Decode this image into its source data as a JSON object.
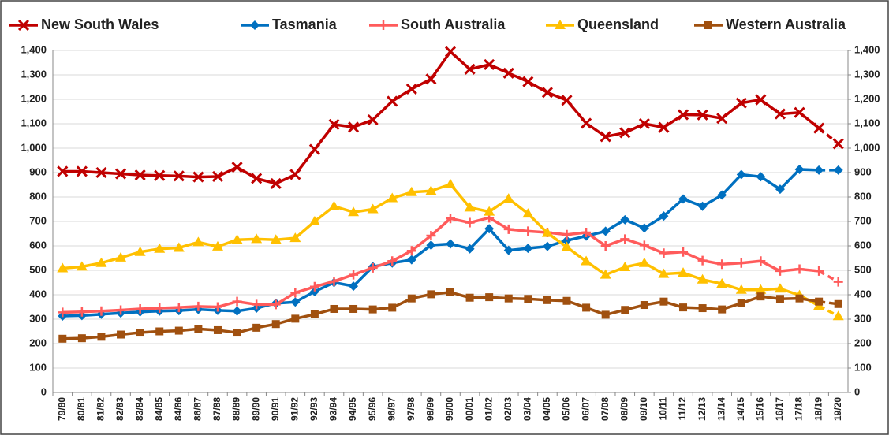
{
  "chart_data": {
    "type": "line",
    "categories": [
      "79/80",
      "80/81",
      "81/82",
      "82/83",
      "83/84",
      "84/85",
      "84/86",
      "86/87",
      "87/88",
      "88/89",
      "89/90",
      "90/91",
      "91/92",
      "92/93",
      "93/94",
      "94/95",
      "95/96",
      "96/97",
      "97/98",
      "98/99",
      "99/00",
      "00/01",
      "01/02",
      "02/03",
      "03/04",
      "04/05",
      "05/06",
      "06/07",
      "07/08",
      "08/09",
      "09/10",
      "10/11",
      "11/12",
      "12/13",
      "13/14",
      "14/15",
      "15/16",
      "16/17",
      "17/18",
      "18/19",
      "19/20"
    ],
    "series": [
      {
        "name": "New South Wales",
        "color": "#c00000",
        "marker": "x",
        "values": [
          905,
          905,
          900,
          895,
          890,
          888,
          886,
          882,
          884,
          922,
          876,
          855,
          892,
          995,
          1097,
          1086,
          1116,
          1192,
          1242,
          1283,
          1395,
          1323,
          1342,
          1307,
          1272,
          1228,
          1196,
          1102,
          1047,
          1063,
          1100,
          1085,
          1137,
          1136,
          1122,
          1185,
          1198,
          1140,
          1146,
          1082,
          1018
        ]
      },
      {
        "name": "Tasmania",
        "color": "#0070c0",
        "marker": "diamond",
        "values": [
          313,
          315,
          320,
          325,
          330,
          333,
          335,
          340,
          336,
          333,
          345,
          365,
          370,
          413,
          450,
          435,
          515,
          530,
          543,
          603,
          608,
          588,
          670,
          582,
          590,
          598,
          622,
          640,
          660,
          707,
          673,
          722,
          792,
          762,
          808,
          892,
          883,
          832,
          913,
          910,
          910
        ]
      },
      {
        "name": "South Australia",
        "color": "#ff5b5b",
        "marker": "plus",
        "values": [
          328,
          330,
          333,
          337,
          342,
          345,
          348,
          352,
          350,
          372,
          360,
          360,
          408,
          433,
          455,
          482,
          510,
          538,
          580,
          642,
          712,
          695,
          715,
          668,
          660,
          655,
          646,
          655,
          600,
          628,
          602,
          570,
          575,
          540,
          525,
          530,
          538,
          497,
          505,
          497,
          453
        ]
      },
      {
        "name": "Queensland",
        "color": "#ffc000",
        "marker": "triangle",
        "values": [
          508,
          515,
          530,
          552,
          575,
          588,
          592,
          615,
          597,
          625,
          628,
          625,
          632,
          700,
          762,
          738,
          750,
          795,
          820,
          825,
          852,
          757,
          740,
          793,
          732,
          653,
          595,
          537,
          482,
          513,
          530,
          485,
          490,
          462,
          445,
          420,
          420,
          425,
          398,
          355,
          312
        ]
      },
      {
        "name": "Western Australia",
        "color": "#a0500f",
        "marker": "square",
        "values": [
          220,
          222,
          228,
          237,
          245,
          250,
          253,
          260,
          255,
          245,
          265,
          280,
          302,
          320,
          342,
          342,
          340,
          347,
          385,
          402,
          410,
          388,
          390,
          385,
          383,
          378,
          375,
          347,
          318,
          338,
          358,
          372,
          348,
          345,
          340,
          365,
          393,
          383,
          385,
          372,
          362
        ]
      }
    ],
    "ylim": [
      0,
      1400
    ],
    "yticks": [
      0,
      100,
      200,
      300,
      400,
      500,
      600,
      700,
      800,
      900,
      {
        "value": 1000,
        "label": "1,000"
      },
      {
        "value": 1100,
        "label": "1,100"
      },
      {
        "value": 1200,
        "label": "1,200"
      },
      {
        "value": 1300,
        "label": "1,300"
      },
      {
        "value": 1400,
        "label": "1,400"
      }
    ],
    "y2lim": [
      0,
      1400
    ],
    "y2ticks": [
      0,
      100,
      200,
      300,
      400,
      500,
      600,
      700,
      800,
      900,
      {
        "value": 1000,
        "label": "1,000"
      },
      {
        "value": 1100,
        "label": "1,100"
      },
      {
        "value": 1200,
        "label": "1,200"
      },
      {
        "value": 1300,
        "label": "1,300"
      },
      {
        "value": 1400,
        "label": "1,400"
      }
    ],
    "grid": true,
    "legend": "top",
    "dashed_last_segment": true
  }
}
